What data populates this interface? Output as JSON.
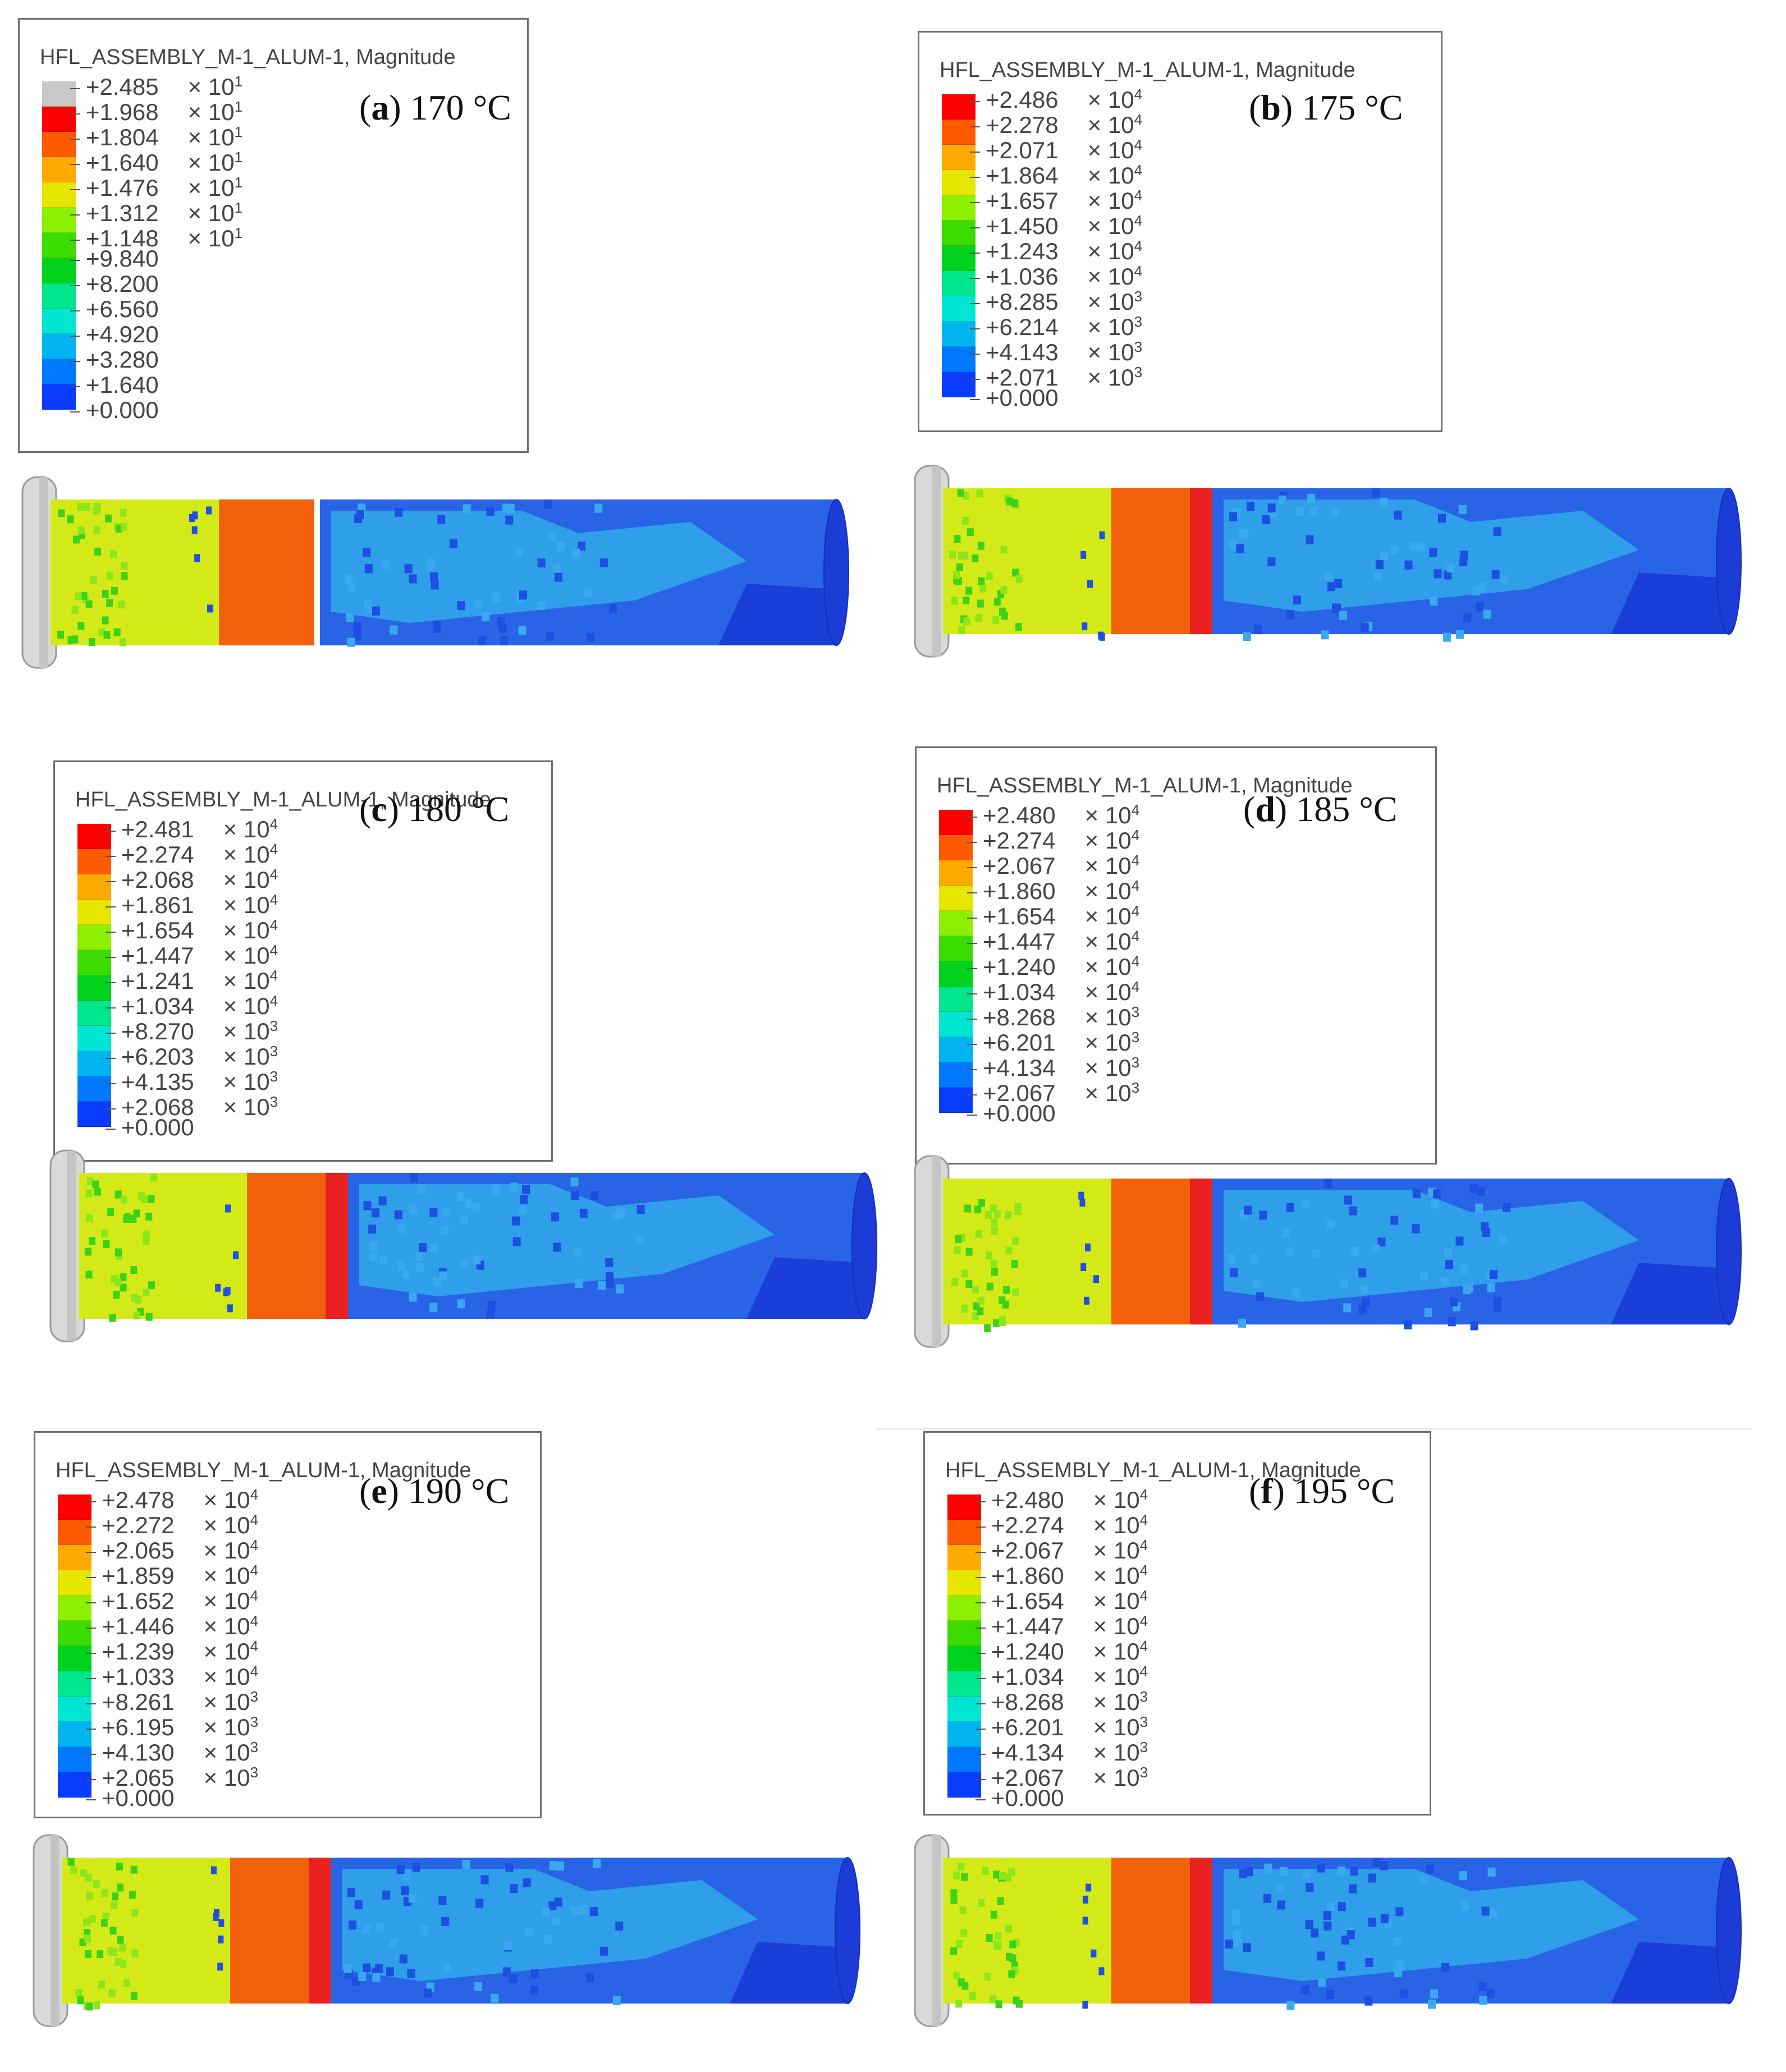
{
  "legend_title": "HFL_ASSEMBLY_M-1_ALUM-1, Magnitude",
  "colors": [
    "#c8c8c8",
    "#ff0000",
    "#ff5a00",
    "#ffaa00",
    "#e6e600",
    "#8cf000",
    "#3cdc00",
    "#00d21e",
    "#00e68c",
    "#00e6d2",
    "#00b4f0",
    "#0078ff",
    "#0a3cff",
    "#0000e6"
  ],
  "panels": [
    {
      "caption_letter": "a",
      "caption_temp": "170 °C",
      "top_gray": true,
      "legend": [
        {
          "val": "+2.485",
          "exp": "× 10",
          "pow": "1"
        },
        {
          "val": "+1.968",
          "exp": "× 10",
          "pow": "1"
        },
        {
          "val": "+1.804",
          "exp": "× 10",
          "pow": "1"
        },
        {
          "val": "+1.640",
          "exp": "× 10",
          "pow": "1"
        },
        {
          "val": "+1.476",
          "exp": "× 10",
          "pow": "1"
        },
        {
          "val": "+1.312",
          "exp": "× 10",
          "pow": "1"
        },
        {
          "val": "+1.148",
          "exp": "× 10",
          "pow": "1"
        },
        {
          "val": "+9.840",
          "exp": "",
          "pow": ""
        },
        {
          "val": "+8.200",
          "exp": "",
          "pow": ""
        },
        {
          "val": "+6.560",
          "exp": "",
          "pow": ""
        },
        {
          "val": "+4.920",
          "exp": "",
          "pow": ""
        },
        {
          "val": "+3.280",
          "exp": "",
          "pow": ""
        },
        {
          "val": "+1.640",
          "exp": "",
          "pow": ""
        },
        {
          "val": "+0.000",
          "exp": "",
          "pow": ""
        }
      ]
    },
    {
      "caption_letter": "b",
      "caption_temp": "175 °C",
      "top_gray": false,
      "legend": [
        {
          "val": "+2.486",
          "exp": "× 10",
          "pow": "4"
        },
        {
          "val": "+2.278",
          "exp": "× 10",
          "pow": "4"
        },
        {
          "val": "+2.071",
          "exp": "× 10",
          "pow": "4"
        },
        {
          "val": "+1.864",
          "exp": "× 10",
          "pow": "4"
        },
        {
          "val": "+1.657",
          "exp": "× 10",
          "pow": "4"
        },
        {
          "val": "+1.450",
          "exp": "× 10",
          "pow": "4"
        },
        {
          "val": "+1.243",
          "exp": "× 10",
          "pow": "4"
        },
        {
          "val": "+1.036",
          "exp": "× 10",
          "pow": "4"
        },
        {
          "val": "+8.285",
          "exp": "× 10",
          "pow": "3"
        },
        {
          "val": "+6.214",
          "exp": "× 10",
          "pow": "3"
        },
        {
          "val": "+4.143",
          "exp": "× 10",
          "pow": "3"
        },
        {
          "val": "+2.071",
          "exp": "× 10",
          "pow": "3"
        },
        {
          "val": "+0.000",
          "exp": "",
          "pow": ""
        }
      ]
    },
    {
      "caption_letter": "c",
      "caption_temp": "180 °C",
      "top_gray": false,
      "legend": [
        {
          "val": "+2.481",
          "exp": "× 10",
          "pow": "4"
        },
        {
          "val": "+2.274",
          "exp": "× 10",
          "pow": "4"
        },
        {
          "val": "+2.068",
          "exp": "× 10",
          "pow": "4"
        },
        {
          "val": "+1.861",
          "exp": "× 10",
          "pow": "4"
        },
        {
          "val": "+1.654",
          "exp": "× 10",
          "pow": "4"
        },
        {
          "val": "+1.447",
          "exp": "× 10",
          "pow": "4"
        },
        {
          "val": "+1.241",
          "exp": "× 10",
          "pow": "4"
        },
        {
          "val": "+1.034",
          "exp": "× 10",
          "pow": "4"
        },
        {
          "val": "+8.270",
          "exp": "× 10",
          "pow": "3"
        },
        {
          "val": "+6.203",
          "exp": "× 10",
          "pow": "3"
        },
        {
          "val": "+4.135",
          "exp": "× 10",
          "pow": "3"
        },
        {
          "val": "+2.068",
          "exp": "× 10",
          "pow": "3"
        },
        {
          "val": "+0.000",
          "exp": "",
          "pow": ""
        }
      ]
    },
    {
      "caption_letter": "d",
      "caption_temp": "185 °C",
      "top_gray": false,
      "legend": [
        {
          "val": "+2.480",
          "exp": "× 10",
          "pow": "4"
        },
        {
          "val": "+2.274",
          "exp": "× 10",
          "pow": "4"
        },
        {
          "val": "+2.067",
          "exp": "× 10",
          "pow": "4"
        },
        {
          "val": "+1.860",
          "exp": "× 10",
          "pow": "4"
        },
        {
          "val": "+1.654",
          "exp": "× 10",
          "pow": "4"
        },
        {
          "val": "+1.447",
          "exp": "× 10",
          "pow": "4"
        },
        {
          "val": "+1.240",
          "exp": "× 10",
          "pow": "4"
        },
        {
          "val": "+1.034",
          "exp": "× 10",
          "pow": "4"
        },
        {
          "val": "+8.268",
          "exp": "× 10",
          "pow": "3"
        },
        {
          "val": "+6.201",
          "exp": "× 10",
          "pow": "3"
        },
        {
          "val": "+4.134",
          "exp": "× 10",
          "pow": "3"
        },
        {
          "val": "+2.067",
          "exp": "× 10",
          "pow": "3"
        },
        {
          "val": "+0.000",
          "exp": "",
          "pow": ""
        }
      ]
    },
    {
      "caption_letter": "e",
      "caption_temp": "190 °C",
      "top_gray": false,
      "legend": [
        {
          "val": "+2.478",
          "exp": "× 10",
          "pow": "4"
        },
        {
          "val": "+2.272",
          "exp": "× 10",
          "pow": "4"
        },
        {
          "val": "+2.065",
          "exp": "× 10",
          "pow": "4"
        },
        {
          "val": "+1.859",
          "exp": "× 10",
          "pow": "4"
        },
        {
          "val": "+1.652",
          "exp": "× 10",
          "pow": "4"
        },
        {
          "val": "+1.446",
          "exp": "× 10",
          "pow": "4"
        },
        {
          "val": "+1.239",
          "exp": "× 10",
          "pow": "4"
        },
        {
          "val": "+1.033",
          "exp": "× 10",
          "pow": "4"
        },
        {
          "val": "+8.261",
          "exp": "× 10",
          "pow": "3"
        },
        {
          "val": "+6.195",
          "exp": "× 10",
          "pow": "3"
        },
        {
          "val": "+4.130",
          "exp": "× 10",
          "pow": "3"
        },
        {
          "val": "+2.065",
          "exp": "× 10",
          "pow": "3"
        },
        {
          "val": "+0.000",
          "exp": "",
          "pow": ""
        }
      ]
    },
    {
      "caption_letter": "f",
      "caption_temp": "195 °C",
      "top_gray": false,
      "legend": [
        {
          "val": "+2.480",
          "exp": "× 10",
          "pow": "4"
        },
        {
          "val": "+2.274",
          "exp": "× 10",
          "pow": "4"
        },
        {
          "val": "+2.067",
          "exp": "× 10",
          "pow": "4"
        },
        {
          "val": "+1.860",
          "exp": "× 10",
          "pow": "4"
        },
        {
          "val": "+1.654",
          "exp": "× 10",
          "pow": "4"
        },
        {
          "val": "+1.447",
          "exp": "× 10",
          "pow": "4"
        },
        {
          "val": "+1.240",
          "exp": "× 10",
          "pow": "4"
        },
        {
          "val": "+1.034",
          "exp": "× 10",
          "pow": "4"
        },
        {
          "val": "+8.268",
          "exp": "× 10",
          "pow": "3"
        },
        {
          "val": "+6.201",
          "exp": "× 10",
          "pow": "3"
        },
        {
          "val": "+4.134",
          "exp": "× 10",
          "pow": "3"
        },
        {
          "val": "+2.067",
          "exp": "× 10",
          "pow": "3"
        },
        {
          "val": "+0.000",
          "exp": "",
          "pow": ""
        }
      ]
    }
  ]
}
